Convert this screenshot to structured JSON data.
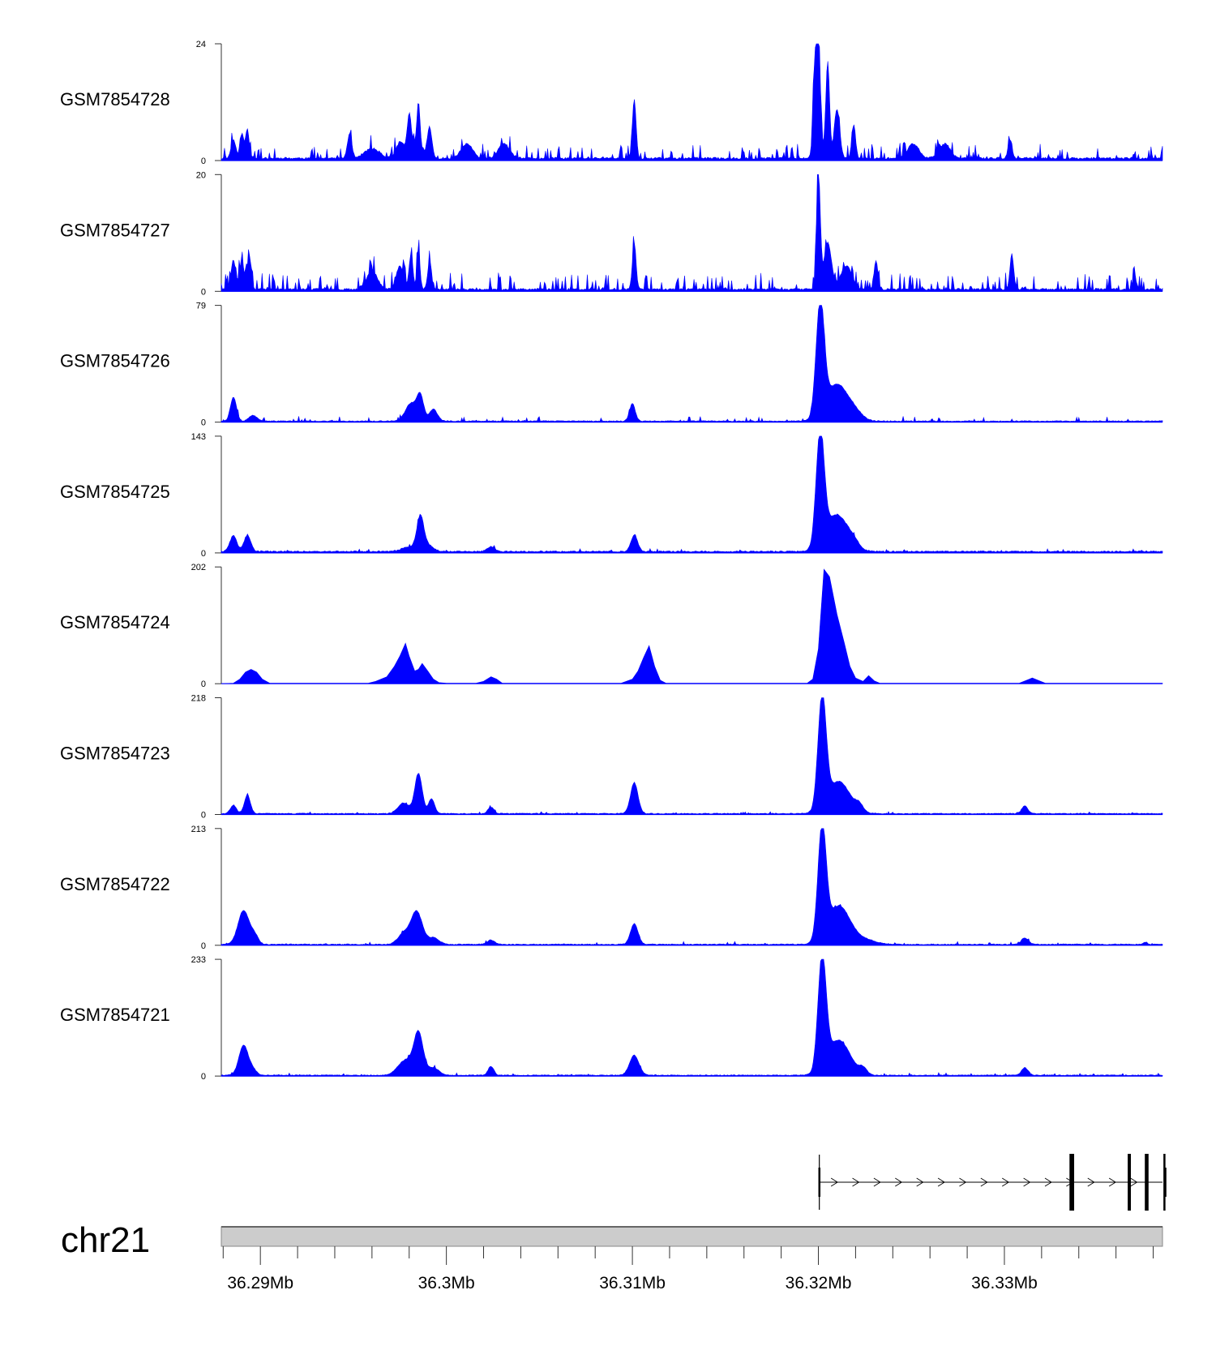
{
  "chart_data": {
    "type": "area",
    "title": "",
    "chromosome": "chr21",
    "color": "#0000FF",
    "xlim": [
      36.2879,
      36.3385
    ],
    "x_unit": "Mb",
    "x_ticks": [
      {
        "value": 36.29,
        "label": "36.29Mb"
      },
      {
        "value": 36.3,
        "label": "36.3Mb"
      },
      {
        "value": 36.31,
        "label": "36.31Mb"
      },
      {
        "value": 36.32,
        "label": "36.32Mb"
      },
      {
        "value": 36.33,
        "label": "36.33Mb"
      }
    ],
    "minor_tick_step": 0.002,
    "tracks": [
      {
        "name": "GSM7854728",
        "ymin": 0,
        "ymax": 24,
        "baseline": 0.4,
        "noise": 0.14,
        "seed": 11,
        "peaks": [
          [
            36.28855,
            4,
            0.00012
          ],
          [
            36.289,
            5,
            0.0001
          ],
          [
            36.2893,
            6,
            0.0001
          ],
          [
            36.2948,
            5,
            0.00012
          ],
          [
            36.296,
            2,
            0.0004
          ],
          [
            36.2975,
            3,
            0.0002
          ],
          [
            36.298,
            7,
            0.0001
          ],
          [
            36.2983,
            3,
            0.0004
          ],
          [
            36.2985,
            9,
            8e-05
          ],
          [
            36.2991,
            6,
            0.00012
          ],
          [
            36.3011,
            3,
            0.0003
          ],
          [
            36.3031,
            3,
            0.0003
          ],
          [
            36.3101,
            12,
            0.0001
          ],
          [
            36.32,
            22,
            0.00012
          ],
          [
            36.3198,
            15,
            0.0001
          ],
          [
            36.3205,
            20,
            0.0001
          ],
          [
            36.321,
            10,
            0.00015
          ],
          [
            36.3219,
            7,
            0.0001
          ],
          [
            36.3251,
            3,
            0.0003
          ],
          [
            36.3268,
            3,
            0.0003
          ],
          [
            36.3303,
            4,
            0.0001
          ]
        ]
      },
      {
        "name": "GSM7854727",
        "ymin": 0,
        "ymax": 20,
        "baseline": 0.3,
        "noise": 0.16,
        "seed": 23,
        "peaks": [
          [
            36.28855,
            5,
            0.00012
          ],
          [
            36.289,
            5,
            0.00012
          ],
          [
            36.2894,
            6,
            0.0001
          ],
          [
            36.296,
            3,
            0.0003
          ],
          [
            36.2975,
            4,
            0.0002
          ],
          [
            36.2981,
            6,
            0.0001
          ],
          [
            36.2985,
            7,
            8e-05
          ],
          [
            36.2991,
            5,
            0.0001
          ],
          [
            36.3101,
            8,
            0.0001
          ],
          [
            36.32,
            20,
            0.0001
          ],
          [
            36.3205,
            8,
            0.0002
          ],
          [
            36.3215,
            4,
            0.0003
          ],
          [
            36.3231,
            5,
            0.0001
          ],
          [
            36.3304,
            6,
            0.0001
          ],
          [
            36.337,
            2,
            0.0001
          ]
        ]
      },
      {
        "name": "GSM7854726",
        "ymin": 0,
        "ymax": 79,
        "baseline": 0.6,
        "noise": 0.05,
        "seed": 37,
        "peaks": [
          [
            36.28855,
            16,
            0.00016
          ],
          [
            36.2896,
            4,
            0.0002
          ],
          [
            36.2981,
            12,
            0.0003
          ],
          [
            36.2986,
            16,
            0.00018
          ],
          [
            36.2993,
            8,
            0.00022
          ],
          [
            36.31,
            12,
            0.00015
          ],
          [
            36.3201,
            76,
            0.00022
          ],
          [
            36.321,
            25,
            0.0006
          ],
          [
            36.322,
            4,
            0.0004
          ]
        ]
      },
      {
        "name": "GSM7854725",
        "ymin": 0,
        "ymax": 143,
        "baseline": 1.5,
        "noise": 0.03,
        "seed": 41,
        "peaks": [
          [
            36.28855,
            20,
            0.00018
          ],
          [
            36.2893,
            20,
            0.00018
          ],
          [
            36.298,
            6,
            0.0004
          ],
          [
            36.2986,
            40,
            0.00018
          ],
          [
            36.299,
            8,
            0.0003
          ],
          [
            36.3024,
            6,
            0.0002
          ],
          [
            36.3101,
            20,
            0.00018
          ],
          [
            36.3201,
            138,
            0.00022
          ],
          [
            36.321,
            45,
            0.0006
          ],
          [
            36.3219,
            6,
            0.0003
          ]
        ]
      },
      {
        "name": "GSM7854724",
        "ymin": 0,
        "ymax": 202,
        "baseline": 1.5,
        "noise": 0.02,
        "seed": 53,
        "poly": [
          [
            36.2879,
            0
          ],
          [
            36.28855,
            1
          ],
          [
            36.2889,
            8
          ],
          [
            36.2892,
            20
          ],
          [
            36.2895,
            25
          ],
          [
            36.2898,
            20
          ],
          [
            36.2901,
            8
          ],
          [
            36.2905,
            1
          ],
          [
            36.2958,
            1
          ],
          [
            36.2962,
            4
          ],
          [
            36.2968,
            12
          ],
          [
            36.2972,
            30
          ],
          [
            36.2975,
            48
          ],
          [
            36.2978,
            70
          ],
          [
            36.298,
            48
          ],
          [
            36.2983,
            22
          ],
          [
            36.2985,
            25
          ],
          [
            36.2987,
            35
          ],
          [
            36.299,
            22
          ],
          [
            36.2993,
            8
          ],
          [
            36.2996,
            2
          ],
          [
            36.3,
            1
          ],
          [
            36.3016,
            1
          ],
          [
            36.302,
            4
          ],
          [
            36.3024,
            12
          ],
          [
            36.3027,
            8
          ],
          [
            36.303,
            1
          ],
          [
            36.3094,
            1
          ],
          [
            36.31,
            8
          ],
          [
            36.3103,
            22
          ],
          [
            36.3106,
            45
          ],
          [
            36.3109,
            66
          ],
          [
            36.3112,
            30
          ],
          [
            36.3115,
            6
          ],
          [
            36.3118,
            1
          ],
          [
            36.3194,
            1
          ],
          [
            36.3197,
            8
          ],
          [
            36.32,
            60
          ],
          [
            36.3203,
            198
          ],
          [
            36.3206,
            185
          ],
          [
            36.321,
            120
          ],
          [
            36.3214,
            70
          ],
          [
            36.3217,
            30
          ],
          [
            36.322,
            10
          ],
          [
            36.3224,
            4
          ],
          [
            36.3227,
            14
          ],
          [
            36.323,
            5
          ],
          [
            36.3233,
            1
          ],
          [
            36.3308,
            1
          ],
          [
            36.3312,
            6
          ],
          [
            36.3315,
            10
          ],
          [
            36.3318,
            6
          ],
          [
            36.3322,
            1
          ],
          [
            36.3385,
            1
          ]
        ]
      },
      {
        "name": "GSM7854723",
        "ymin": 0,
        "ymax": 218,
        "baseline": 1.5,
        "noise": 0.02,
        "seed": 67,
        "peaks": [
          [
            36.28855,
            16,
            0.00016
          ],
          [
            36.2893,
            35,
            0.00016
          ],
          [
            36.2985,
            75,
            0.0002
          ],
          [
            36.2977,
            20,
            0.0003
          ],
          [
            36.2992,
            28,
            0.00016
          ],
          [
            36.3024,
            12,
            0.00016
          ],
          [
            36.3101,
            58,
            0.0002
          ],
          [
            36.3202,
            208,
            0.00022
          ],
          [
            36.3211,
            60,
            0.0006
          ],
          [
            36.3222,
            12,
            0.0002
          ],
          [
            36.3311,
            15,
            0.00016
          ]
        ]
      },
      {
        "name": "GSM7854722",
        "ymin": 0,
        "ymax": 213,
        "baseline": 1.5,
        "noise": 0.03,
        "seed": 71,
        "peaks": [
          [
            36.2891,
            62,
            0.0003
          ],
          [
            36.2897,
            15,
            0.0002
          ],
          [
            36.2984,
            60,
            0.0003
          ],
          [
            36.2977,
            20,
            0.0003
          ],
          [
            36.2993,
            12,
            0.0003
          ],
          [
            36.3024,
            8,
            0.0002
          ],
          [
            36.3101,
            38,
            0.0002
          ],
          [
            36.3202,
            204,
            0.00022
          ],
          [
            36.3211,
            70,
            0.0006
          ],
          [
            36.3225,
            8,
            0.0006
          ],
          [
            36.3311,
            12,
            0.00018
          ],
          [
            36.3376,
            4,
            0.0001
          ]
        ]
      },
      {
        "name": "GSM7854721",
        "ymin": 0,
        "ymax": 233,
        "baseline": 1.5,
        "noise": 0.025,
        "seed": 89,
        "peaks": [
          [
            36.2891,
            60,
            0.00025
          ],
          [
            36.2896,
            10,
            0.0002
          ],
          [
            36.2985,
            82,
            0.00025
          ],
          [
            36.2978,
            30,
            0.0004
          ],
          [
            36.2993,
            15,
            0.0003
          ],
          [
            36.3024,
            18,
            0.00015
          ],
          [
            36.3101,
            40,
            0.00025
          ],
          [
            36.3202,
            225,
            0.00022
          ],
          [
            36.3211,
            70,
            0.0006
          ],
          [
            36.3224,
            12,
            0.0002
          ],
          [
            36.3311,
            15,
            0.00018
          ]
        ]
      }
    ],
    "gene_model": {
      "strand": "+",
      "start": 36.32005,
      "end": 36.3385,
      "intron_arrow_step": 0.00115,
      "exons": [
        {
          "start": 36.32,
          "end": 36.32008,
          "tall": false
        },
        {
          "start": 36.3335,
          "end": 36.33375,
          "tall": true
        },
        {
          "start": 36.33663,
          "end": 36.3368,
          "tall": true
        },
        {
          "start": 36.33755,
          "end": 36.33775,
          "tall": true
        },
        {
          "start": 36.33855,
          "end": 36.3388,
          "tall": true
        },
        {
          "start": 36.3386,
          "end": 36.3398,
          "tall": false
        }
      ],
      "cds_start": 36.3335
    }
  }
}
